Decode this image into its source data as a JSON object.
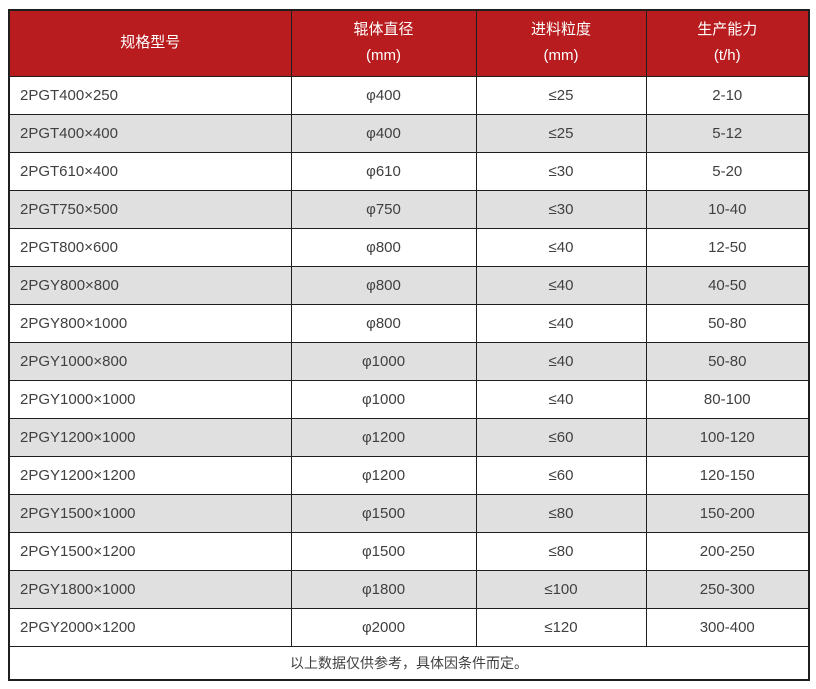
{
  "colors": {
    "header_bg": "#b91c1f",
    "header_text": "#ffffff",
    "row_bg": "#ffffff",
    "row_alt_bg": "#e0e0e0",
    "border": "#1f1f1f",
    "text": "#404040"
  },
  "chart_data": {
    "type": "table",
    "columns": [
      {
        "label": "规格型号",
        "unit": ""
      },
      {
        "label": "辊体直径",
        "unit": "(mm)"
      },
      {
        "label": "进料粒度",
        "unit": "(mm)"
      },
      {
        "label": "生产能力",
        "unit": "(t/h)"
      }
    ],
    "rows": [
      {
        "model": "2PGT400×250",
        "diameter": "φ400",
        "feed_size": "≤25",
        "capacity": "2-10"
      },
      {
        "model": "2PGT400×400",
        "diameter": "φ400",
        "feed_size": "≤25",
        "capacity": "5-12"
      },
      {
        "model": "2PGT610×400",
        "diameter": "φ610",
        "feed_size": "≤30",
        "capacity": "5-20"
      },
      {
        "model": "2PGT750×500",
        "diameter": "φ750",
        "feed_size": "≤30",
        "capacity": "10-40"
      },
      {
        "model": "2PGT800×600",
        "diameter": "φ800",
        "feed_size": "≤40",
        "capacity": "12-50"
      },
      {
        "model": "2PGY800×800",
        "diameter": "φ800",
        "feed_size": "≤40",
        "capacity": "40-50"
      },
      {
        "model": "2PGY800×1000",
        "diameter": "φ800",
        "feed_size": "≤40",
        "capacity": "50-80"
      },
      {
        "model": "2PGY1000×800",
        "diameter": "φ1000",
        "feed_size": "≤40",
        "capacity": "50-80"
      },
      {
        "model": "2PGY1000×1000",
        "diameter": "φ1000",
        "feed_size": "≤40",
        "capacity": "80-100"
      },
      {
        "model": "2PGY1200×1000",
        "diameter": "φ1200",
        "feed_size": "≤60",
        "capacity": "100-120"
      },
      {
        "model": "2PGY1200×1200",
        "diameter": "φ1200",
        "feed_size": "≤60",
        "capacity": "120-150"
      },
      {
        "model": "2PGY1500×1000",
        "diameter": "φ1500",
        "feed_size": "≤80",
        "capacity": "150-200"
      },
      {
        "model": "2PGY1500×1200",
        "diameter": "φ1500",
        "feed_size": "≤80",
        "capacity": "200-250"
      },
      {
        "model": "2PGY1800×1000",
        "diameter": "φ1800",
        "feed_size": "≤100",
        "capacity": "250-300"
      },
      {
        "model": "2PGY2000×1200",
        "diameter": "φ2000",
        "feed_size": "≤120",
        "capacity": "300-400"
      }
    ],
    "footnote": "以上数据仅供参考，具体因条件而定。"
  }
}
